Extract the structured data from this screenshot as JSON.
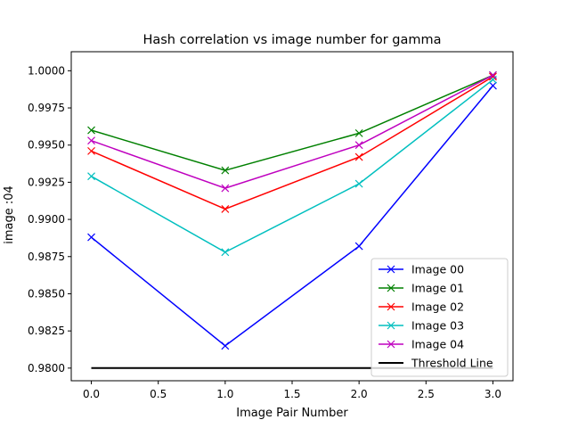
{
  "chart_data": {
    "type": "line",
    "title": "Hash correlation vs image number for gamma",
    "xlabel": "Image Pair Number",
    "ylabel": "image :04",
    "xlim": [
      -0.15,
      3.15
    ],
    "ylim": [
      0.97915,
      1.00128
    ],
    "xticks": [
      0.0,
      0.5,
      1.0,
      1.5,
      2.0,
      2.5,
      3.0
    ],
    "xtick_labels": [
      "0.0",
      "0.5",
      "1.0",
      "1.5",
      "2.0",
      "2.5",
      "3.0"
    ],
    "yticks": [
      0.98,
      0.9825,
      0.985,
      0.9875,
      0.99,
      0.9925,
      0.995,
      0.9975,
      1.0
    ],
    "ytick_labels": [
      "0.9800",
      "0.9825",
      "0.9850",
      "0.9875",
      "0.9900",
      "0.9925",
      "0.9950",
      "0.9975",
      "1.0000"
    ],
    "grid": false,
    "legend_position": "bottom-right",
    "x": [
      0,
      1,
      2,
      3
    ],
    "series": [
      {
        "name": "Image 00",
        "color": "#0000ff",
        "marker": "x",
        "values": [
          0.9888,
          0.9815,
          0.9882,
          0.999
        ]
      },
      {
        "name": "Image 01",
        "color": "#008000",
        "marker": "x",
        "values": [
          0.996,
          0.9933,
          0.9958,
          0.9997
        ]
      },
      {
        "name": "Image 02",
        "color": "#ff0000",
        "marker": "x",
        "values": [
          0.9946,
          0.9907,
          0.9942,
          0.9996
        ]
      },
      {
        "name": "Image 03",
        "color": "#00bfbf",
        "marker": "x",
        "values": [
          0.9929,
          0.9878,
          0.9924,
          0.9994
        ]
      },
      {
        "name": "Image 04",
        "color": "#bf00bf",
        "marker": "x",
        "values": [
          0.9953,
          0.9921,
          0.995,
          0.9997
        ]
      },
      {
        "name": "Threshold Line",
        "color": "#000000",
        "marker": "none",
        "values": [
          0.98,
          0.98,
          0.98,
          0.98
        ]
      }
    ]
  }
}
